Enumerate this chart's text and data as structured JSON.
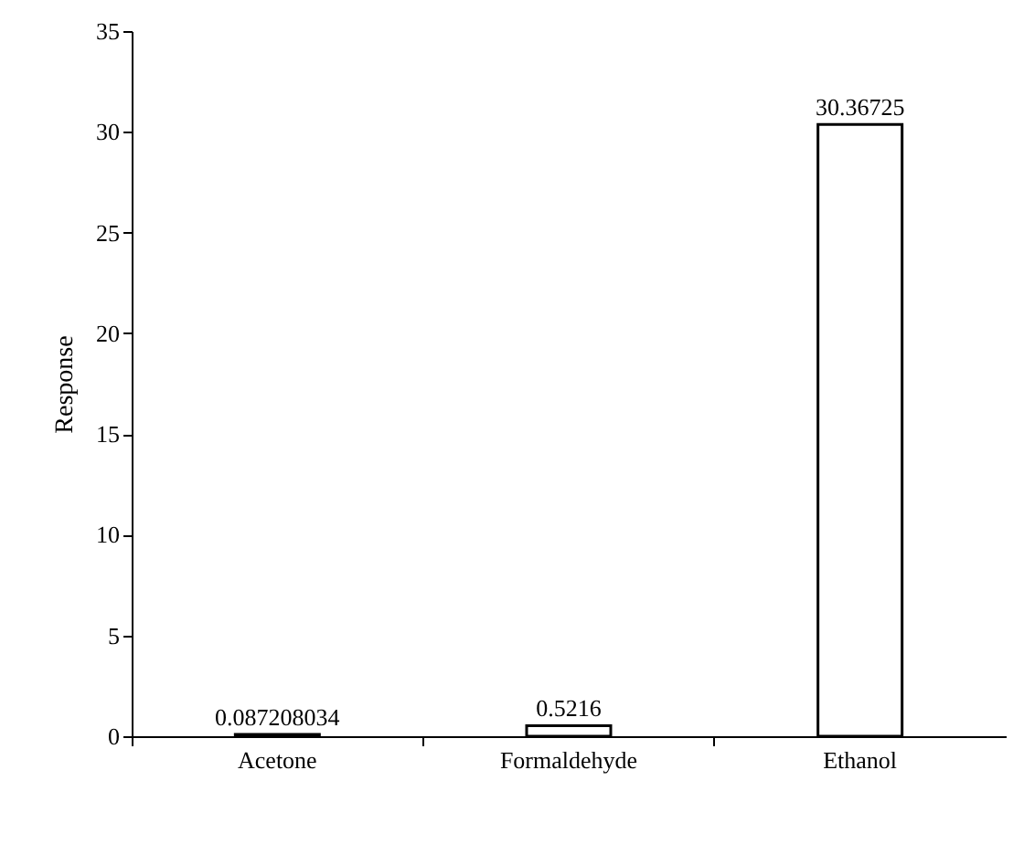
{
  "chart_data": {
    "type": "bar",
    "ylabel": "Response",
    "categories": [
      "Acetone",
      "Formaldehyde",
      "Ethanol"
    ],
    "values": [
      0.087208034,
      0.5216,
      30.36725
    ],
    "color": "#ffffff",
    "ylim": [
      0,
      35
    ],
    "yticks": [
      0,
      5,
      10,
      15,
      20,
      25,
      30,
      35
    ],
    "grid": false,
    "data_labels": true
  }
}
